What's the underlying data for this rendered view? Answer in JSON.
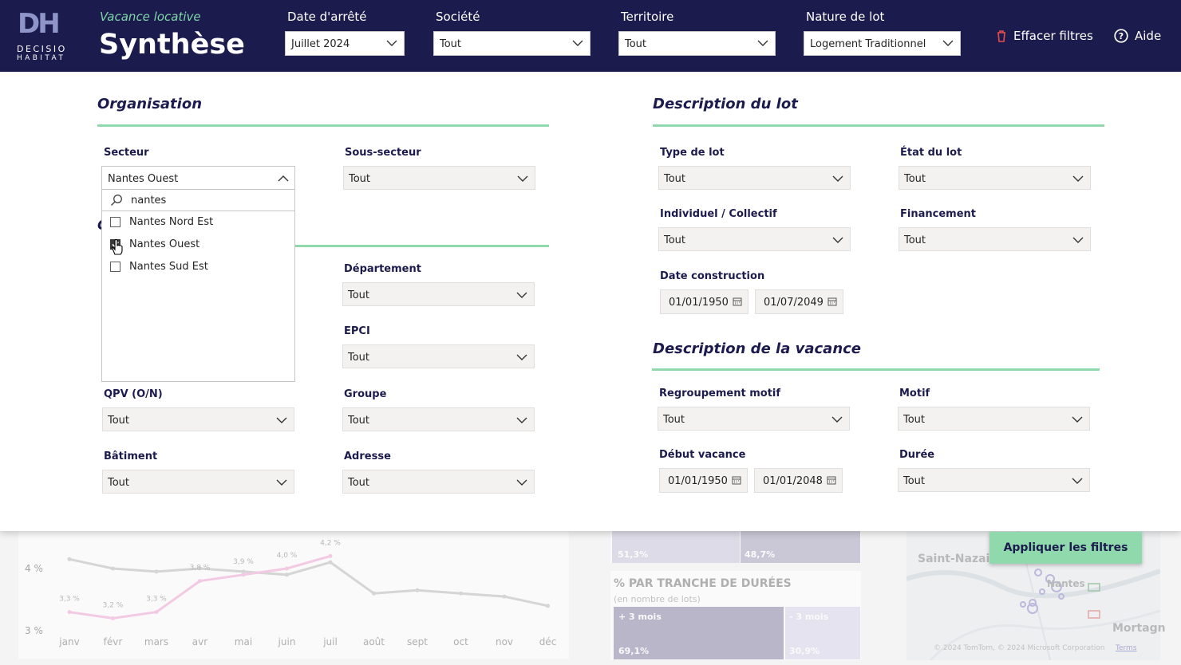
{
  "header": {
    "logo": {
      "letters": "DH",
      "line1": "DECISIO",
      "line2": "HABITAT"
    },
    "subtitle": "Vacance locative",
    "title": "Synthèse",
    "filters": [
      {
        "label": "Date d'arrêté",
        "value": "Juillet 2024"
      },
      {
        "label": "Société",
        "value": "Tout"
      },
      {
        "label": "Territoire",
        "value": "Tout"
      },
      {
        "label": "Nature de lot",
        "value": "Logement Traditionnel"
      }
    ],
    "clear_label": "Effacer filtres",
    "help_label": "Aide",
    "colors": {
      "bg": "#1c1b4d",
      "accent": "#7fd6a9",
      "clear_icon": "#e74c4c"
    }
  },
  "organisation": {
    "title": "Organisation",
    "secteur": {
      "label": "Secteur",
      "value": "Nantes Ouest",
      "search": "nantes",
      "options": [
        {
          "label": "Nantes Nord Est",
          "checked": false
        },
        {
          "label": "Nantes Ouest",
          "checked": true
        },
        {
          "label": "Nantes Sud Est",
          "checked": false
        }
      ]
    },
    "sous_secteur": {
      "label": "Sous-secteur",
      "value": "Tout"
    },
    "departement": {
      "label": "Département",
      "value": "Tout"
    },
    "epci": {
      "label": "EPCI",
      "value": "Tout"
    },
    "qpv": {
      "label": "QPV (O/N)",
      "value": "Tout"
    },
    "groupe": {
      "label": "Groupe",
      "value": "Tout"
    },
    "batiment": {
      "label": "Bâtiment",
      "value": "Tout"
    },
    "adresse": {
      "label": "Adresse",
      "value": "Tout"
    },
    "hidden_letter": "C"
  },
  "lot": {
    "title": "Description du lot",
    "type": {
      "label": "Type de lot",
      "value": "Tout"
    },
    "etat": {
      "label": "État du lot",
      "value": "Tout"
    },
    "indiv": {
      "label": "Individuel / Collectif",
      "value": "Tout"
    },
    "financement": {
      "label": "Financement",
      "value": "Tout"
    },
    "date_construction": {
      "label": "Date construction",
      "from": "01/01/1950",
      "to": "01/07/2049"
    }
  },
  "vacance": {
    "title": "Description de la vacance",
    "regroupement": {
      "label": "Regroupement motif",
      "value": "Tout"
    },
    "motif": {
      "label": "Motif",
      "value": "Tout"
    },
    "debut": {
      "label": "Début vacance",
      "from": "01/01/1950",
      "to": "01/01/2048"
    },
    "duree": {
      "label": "Durée",
      "value": "Tout"
    }
  },
  "apply_label": "Appliquer les filtres",
  "background": {
    "chart": {
      "yticks": [
        "4 %",
        "3 %"
      ],
      "months": [
        "janv",
        "févr",
        "mars",
        "avr",
        "mai",
        "juin",
        "juil",
        "août",
        "sept",
        "oct",
        "nov",
        "déc"
      ],
      "series_current": [
        3.3,
        3.2,
        3.3,
        3.8,
        3.9,
        4.0,
        4.2
      ],
      "series_current_labels": [
        "3,3 %",
        "3,2 %",
        "3,3 %",
        "3,8 %",
        "3,9 %",
        "4,0 %",
        "4,2 %"
      ],
      "series_previous": [
        4.15,
        4.0,
        3.95,
        4.0,
        3.95,
        3.9,
        4.1,
        3.6,
        3.65,
        3.6,
        3.55,
        3.4
      ],
      "ylim": [
        3.0,
        4.4
      ]
    },
    "tiles_top": [
      "51,3%",
      "48,7%"
    ],
    "duration_title": "% PAR TRANCHE DE DURÉES",
    "duration_sub": "(en nombre de lots)",
    "duration_tiles": [
      {
        "label": "+ 3 mois",
        "value": "69,1%"
      },
      {
        "label": "- 3 mois",
        "value": "30,9%"
      }
    ],
    "map": {
      "city1": "Saint-Nazaire",
      "city2": "Nantes",
      "city3": "Mortagn",
      "credits": "© 2024 TomTom, © 2024 Microsoft Corporation",
      "terms": "Terms"
    }
  }
}
